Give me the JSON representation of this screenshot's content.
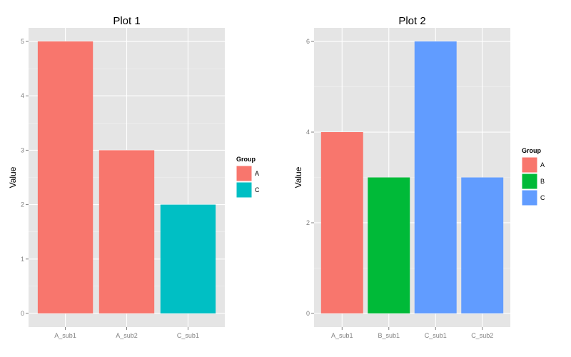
{
  "chart_data": [
    {
      "type": "bar",
      "title": "Plot 1",
      "xlabel": "",
      "ylabel": "Value",
      "categories": [
        "A_sub1",
        "A_sub2",
        "C_sub1"
      ],
      "values": [
        5,
        3,
        2
      ],
      "groups": [
        "A",
        "A",
        "C"
      ],
      "ylim": [
        -0.25,
        5.25
      ],
      "yticks": [
        0,
        1,
        2,
        3,
        4,
        5
      ],
      "grid": true,
      "legend": {
        "title": "Group",
        "placement": "right",
        "items": [
          {
            "label": "A",
            "color": "#F8766D"
          },
          {
            "label": "C",
            "color": "#00BFC4"
          }
        ]
      }
    },
    {
      "type": "bar",
      "title": "Plot 2",
      "xlabel": "",
      "ylabel": "Value",
      "categories": [
        "A_sub1",
        "B_sub1",
        "C_sub1",
        "C_sub2"
      ],
      "values": [
        4,
        3,
        6,
        3
      ],
      "groups": [
        "A",
        "B",
        "C",
        "C"
      ],
      "ylim": [
        -0.3,
        6.3
      ],
      "yticks": [
        0,
        2,
        4,
        6
      ],
      "grid": true,
      "legend": {
        "title": "Group",
        "placement": "right",
        "items": [
          {
            "label": "A",
            "color": "#F8766D"
          },
          {
            "label": "B",
            "color": "#00BA38"
          },
          {
            "label": "C",
            "color": "#619CFF"
          }
        ]
      }
    }
  ]
}
